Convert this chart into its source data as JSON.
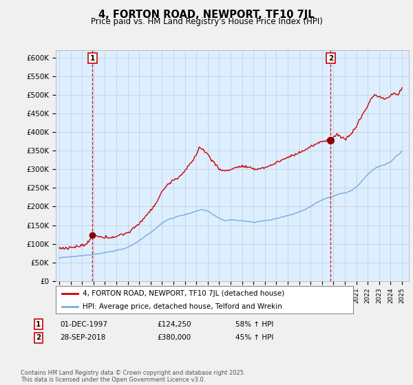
{
  "title": "4, FORTON ROAD, NEWPORT, TF10 7JL",
  "subtitle": "Price paid vs. HM Land Registry's House Price Index (HPI)",
  "ylim": [
    0,
    620000
  ],
  "yticks": [
    0,
    50000,
    100000,
    150000,
    200000,
    250000,
    300000,
    350000,
    400000,
    450000,
    500000,
    550000,
    600000
  ],
  "ytick_labels": [
    "£0",
    "£50K",
    "£100K",
    "£150K",
    "£200K",
    "£250K",
    "£300K",
    "£350K",
    "£400K",
    "£450K",
    "£500K",
    "£550K",
    "£600K"
  ],
  "line1_color": "#cc0000",
  "line2_color": "#7aaadd",
  "vline_color": "#cc0000",
  "plot_bg_color": "#ddeeff",
  "marker1_date": 1997.917,
  "marker2_date": 2018.75,
  "marker1_val": 124250,
  "marker2_val": 380000,
  "transaction1": {
    "label": "1",
    "date": "01-DEC-1997",
    "price": "£124,250",
    "hpi": "58% ↑ HPI"
  },
  "transaction2": {
    "label": "2",
    "date": "28-SEP-2018",
    "price": "£380,000",
    "hpi": "45% ↑ HPI"
  },
  "legend1": "4, FORTON ROAD, NEWPORT, TF10 7JL (detached house)",
  "legend2": "HPI: Average price, detached house, Telford and Wrekin",
  "footer": "Contains HM Land Registry data © Crown copyright and database right 2025.\nThis data is licensed under the Open Government Licence v3.0.",
  "bg_color": "#f0f0f0",
  "hpi_keypoints": [
    [
      1995.0,
      62000
    ],
    [
      1996.0,
      65000
    ],
    [
      1997.0,
      68000
    ],
    [
      1998.0,
      72000
    ],
    [
      1999.0,
      76000
    ],
    [
      2000.0,
      82000
    ],
    [
      2001.0,
      90000
    ],
    [
      2002.0,
      108000
    ],
    [
      2003.0,
      130000
    ],
    [
      2004.0,
      155000
    ],
    [
      2004.5,
      165000
    ],
    [
      2005.0,
      170000
    ],
    [
      2005.5,
      175000
    ],
    [
      2006.0,
      178000
    ],
    [
      2006.5,
      182000
    ],
    [
      2007.0,
      188000
    ],
    [
      2007.5,
      192000
    ],
    [
      2008.0,
      188000
    ],
    [
      2008.5,
      178000
    ],
    [
      2009.0,
      168000
    ],
    [
      2009.5,
      162000
    ],
    [
      2010.0,
      165000
    ],
    [
      2010.5,
      163000
    ],
    [
      2011.0,
      162000
    ],
    [
      2011.5,
      160000
    ],
    [
      2012.0,
      158000
    ],
    [
      2012.5,
      160000
    ],
    [
      2013.0,
      162000
    ],
    [
      2013.5,
      164000
    ],
    [
      2014.0,
      168000
    ],
    [
      2014.5,
      172000
    ],
    [
      2015.0,
      176000
    ],
    [
      2015.5,
      180000
    ],
    [
      2016.0,
      186000
    ],
    [
      2016.5,
      192000
    ],
    [
      2017.0,
      200000
    ],
    [
      2017.5,
      210000
    ],
    [
      2018.0,
      218000
    ],
    [
      2018.5,
      224000
    ],
    [
      2019.0,
      228000
    ],
    [
      2019.5,
      234000
    ],
    [
      2020.0,
      236000
    ],
    [
      2020.5,
      242000
    ],
    [
      2021.0,
      252000
    ],
    [
      2021.5,
      268000
    ],
    [
      2022.0,
      286000
    ],
    [
      2022.5,
      300000
    ],
    [
      2023.0,
      308000
    ],
    [
      2023.5,
      312000
    ],
    [
      2024.0,
      320000
    ],
    [
      2024.5,
      335000
    ],
    [
      2025.0,
      348000
    ]
  ],
  "price_keypoints": [
    [
      1995.0,
      88000
    ],
    [
      1995.5,
      88500
    ],
    [
      1996.0,
      90000
    ],
    [
      1996.5,
      92000
    ],
    [
      1997.0,
      95000
    ],
    [
      1997.5,
      100000
    ],
    [
      1997.917,
      124250
    ],
    [
      1998.0,
      122000
    ],
    [
      1998.5,
      118000
    ],
    [
      1999.0,
      116000
    ],
    [
      1999.5,
      118000
    ],
    [
      2000.0,
      120000
    ],
    [
      2000.5,
      125000
    ],
    [
      2001.0,
      130000
    ],
    [
      2001.5,
      140000
    ],
    [
      2002.0,
      155000
    ],
    [
      2002.5,
      172000
    ],
    [
      2003.0,
      190000
    ],
    [
      2003.5,
      210000
    ],
    [
      2004.0,
      240000
    ],
    [
      2004.5,
      260000
    ],
    [
      2005.0,
      270000
    ],
    [
      2005.5,
      280000
    ],
    [
      2006.0,
      295000
    ],
    [
      2006.5,
      315000
    ],
    [
      2007.0,
      340000
    ],
    [
      2007.3,
      360000
    ],
    [
      2007.6,
      352000
    ],
    [
      2008.0,
      340000
    ],
    [
      2008.5,
      320000
    ],
    [
      2009.0,
      300000
    ],
    [
      2009.5,
      295000
    ],
    [
      2010.0,
      300000
    ],
    [
      2010.5,
      305000
    ],
    [
      2011.0,
      308000
    ],
    [
      2011.5,
      305000
    ],
    [
      2012.0,
      300000
    ],
    [
      2012.5,
      302000
    ],
    [
      2013.0,
      305000
    ],
    [
      2013.5,
      310000
    ],
    [
      2014.0,
      318000
    ],
    [
      2014.5,
      325000
    ],
    [
      2015.0,
      332000
    ],
    [
      2015.5,
      338000
    ],
    [
      2016.0,
      345000
    ],
    [
      2016.5,
      352000
    ],
    [
      2017.0,
      360000
    ],
    [
      2017.5,
      368000
    ],
    [
      2018.0,
      374000
    ],
    [
      2018.75,
      380000
    ],
    [
      2019.0,
      385000
    ],
    [
      2019.3,
      395000
    ],
    [
      2019.5,
      388000
    ],
    [
      2020.0,
      382000
    ],
    [
      2020.5,
      392000
    ],
    [
      2021.0,
      415000
    ],
    [
      2021.5,
      445000
    ],
    [
      2022.0,
      470000
    ],
    [
      2022.3,
      490000
    ],
    [
      2022.6,
      500000
    ],
    [
      2023.0,
      495000
    ],
    [
      2023.5,
      488000
    ],
    [
      2023.8,
      492000
    ],
    [
      2024.0,
      498000
    ],
    [
      2024.3,
      505000
    ],
    [
      2024.6,
      498000
    ],
    [
      2024.8,
      510000
    ],
    [
      2025.0,
      515000
    ]
  ]
}
